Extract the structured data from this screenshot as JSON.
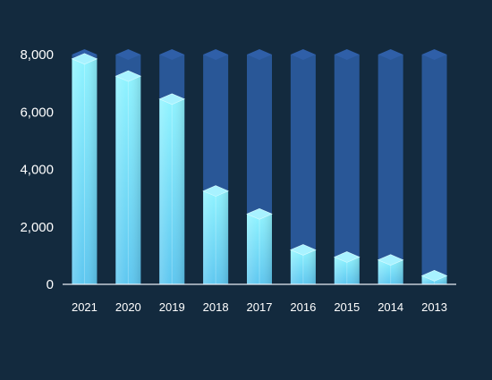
{
  "chart_data": {
    "type": "bar",
    "style": "3d-cylinder-column",
    "categories": [
      "2021",
      "2020",
      "2019",
      "2018",
      "2017",
      "2016",
      "2015",
      "2014",
      "2013"
    ],
    "series": [
      {
        "values": [
          7850,
          7250,
          6450,
          3250,
          2450,
          1200,
          950,
          850,
          300
        ]
      }
    ],
    "ylim": [
      0,
      8000
    ],
    "y_ticks": [
      "0",
      "2,000",
      "4,000",
      "6,000",
      "8,000"
    ],
    "y_tick_values": [
      0,
      2000,
      4000,
      6000,
      8000
    ],
    "title": "",
    "xlabel": "",
    "ylabel": "",
    "grid": false,
    "legend": "none",
    "colors": {
      "background": "#132a3e",
      "bar_fill_top": "#8ff3ff",
      "bar_fill_bottom": "#5ec7f0",
      "bar_cap": "#a8f2ff",
      "track": "#2a5a9c",
      "track_cap": "#2f5fa8",
      "axis": "#e8eef5",
      "tick_label": "#ffffff"
    }
  }
}
